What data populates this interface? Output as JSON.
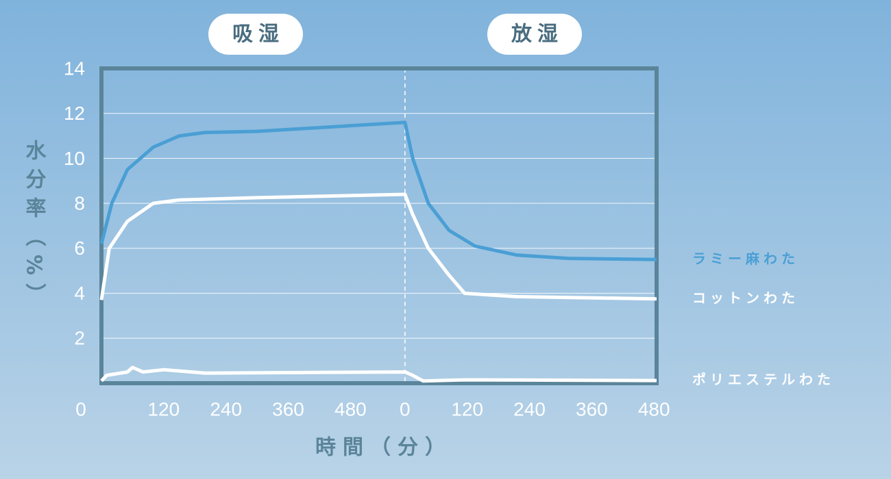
{
  "chart_data": {
    "type": "line",
    "phases": [
      "吸湿",
      "放湿"
    ],
    "y_label": "水分率（%）",
    "x_label": "時間（分）",
    "xlim": [
      0,
      1070
    ],
    "ylim": [
      0,
      14
    ],
    "yticks": [
      0,
      2,
      4,
      6,
      8,
      10,
      12,
      14
    ],
    "xticks": [
      120,
      240,
      360,
      480,
      {
        "value": 585,
        "label": "0"
      },
      {
        "value": 705,
        "label": "120"
      },
      {
        "value": 825,
        "label": "240"
      },
      {
        "value": 945,
        "label": "360"
      },
      {
        "value": 1065,
        "label": "480"
      }
    ],
    "grid": true,
    "series": [
      {
        "name": "ラミー麻わた",
        "color": "#4a9fd4",
        "x": [
          0,
          20,
          50,
          100,
          150,
          200,
          300,
          585,
          600,
          630,
          670,
          720,
          800,
          900,
          1070
        ],
        "values": [
          6.2,
          8.0,
          9.5,
          10.5,
          11.0,
          11.15,
          11.2,
          11.6,
          10.0,
          8.0,
          6.8,
          6.1,
          5.7,
          5.55,
          5.5
        ]
      },
      {
        "name": "コットンわた",
        "color": "#ffffff",
        "x": [
          0,
          15,
          50,
          100,
          150,
          300,
          585,
          600,
          630,
          670,
          700,
          800,
          1070
        ],
        "values": [
          3.7,
          6.0,
          7.2,
          8.0,
          8.15,
          8.25,
          8.4,
          7.5,
          6.0,
          4.8,
          4.0,
          3.85,
          3.75
        ]
      },
      {
        "name": "ポリエステルわた",
        "color": "#ffffff",
        "x": [
          0,
          10,
          50,
          60,
          80,
          120,
          200,
          585,
          600,
          620,
          700,
          1070
        ],
        "values": [
          0.1,
          0.35,
          0.5,
          0.7,
          0.5,
          0.6,
          0.45,
          0.5,
          0.35,
          0.1,
          0.15,
          0.12
        ]
      }
    ]
  }
}
